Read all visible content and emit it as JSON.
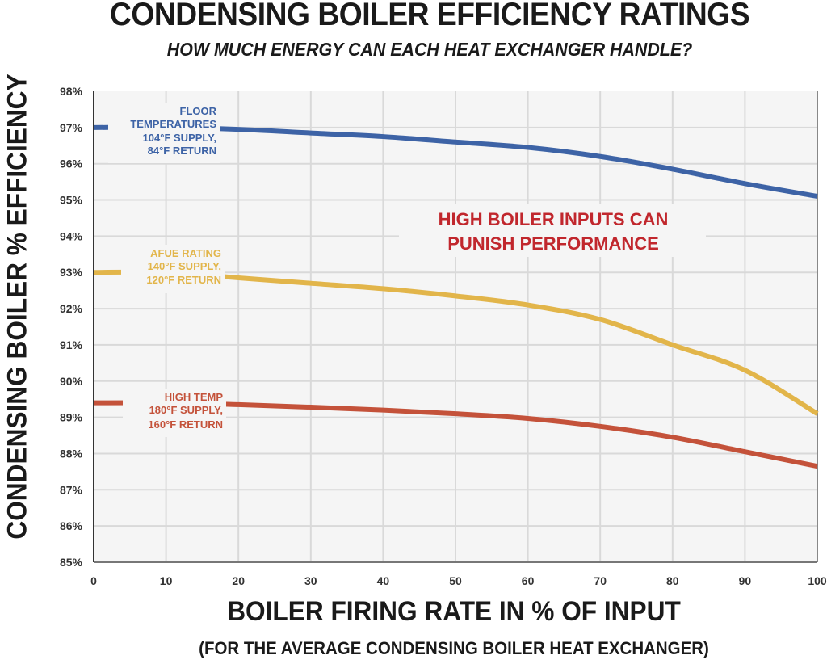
{
  "header": {
    "title": "CONDENSING BOILER EFFICIENCY RATINGS",
    "subtitle": "HOW MUCH ENERGY CAN EACH HEAT EXCHANGER HANDLE?"
  },
  "axes": {
    "ylabel": "CONDENSING BOILER % EFFICIENCY",
    "xlabel": "BOILER FIRING RATE IN % OF INPUT",
    "xsublabel": "(FOR THE AVERAGE CONDENSING BOILER HEAT EXCHANGER)",
    "yticks": [
      "98%",
      "97%",
      "96%",
      "95%",
      "94%",
      "93%",
      "92%",
      "91%",
      "90%",
      "89%",
      "88%",
      "87%",
      "86%",
      "85%"
    ],
    "xticks": [
      "0",
      "10",
      "20",
      "30",
      "40",
      "50",
      "60",
      "70",
      "80",
      "90",
      "100"
    ]
  },
  "series_labels": {
    "floor": [
      "FLOOR",
      "TEMPERATURES",
      "104°F SUPPLY,",
      "84°F RETURN"
    ],
    "afue": [
      "AFUE RATING",
      "140°F SUPPLY,",
      "120°F RETURN"
    ],
    "high": [
      "HIGH TEMP",
      "180°F SUPPLY,",
      "160°F RETURN"
    ]
  },
  "annotation": [
    "HIGH BOILER INPUTS CAN",
    "PUNISH PERFORMANCE"
  ],
  "colors": {
    "floor": "#3d63a6",
    "afue": "#e2b54a",
    "high": "#c4523a",
    "annotation": "#c1272d",
    "plot_bg": "#f5f5f5",
    "grid": "#d9d9d9"
  },
  "chart_data": {
    "type": "line",
    "title": "CONDENSING BOILER EFFICIENCY RATINGS",
    "subtitle": "HOW MUCH ENERGY CAN EACH HEAT EXCHANGER HANDLE?",
    "xlabel": "BOILER FIRING RATE IN % OF INPUT (FOR THE AVERAGE CONDENSING BOILER HEAT EXCHANGER)",
    "ylabel": "CONDENSING BOILER % EFFICIENCY",
    "x": [
      0,
      10,
      20,
      30,
      40,
      50,
      60,
      70,
      80,
      90,
      100
    ],
    "xlim": [
      0,
      100
    ],
    "ylim": [
      85,
      98
    ],
    "grid": true,
    "legend_position": "inline labels at left",
    "series": [
      {
        "name": "FLOOR TEMPERATURES 104°F SUPPLY, 84°F RETURN",
        "values": [
          97.0,
          97.0,
          96.95,
          96.85,
          96.75,
          96.6,
          96.45,
          96.2,
          95.85,
          95.45,
          95.1
        ]
      },
      {
        "name": "AFUE RATING 140°F SUPPLY, 120°F RETURN",
        "values": [
          93.0,
          93.0,
          92.85,
          92.7,
          92.55,
          92.35,
          92.1,
          91.7,
          91.0,
          90.3,
          89.1
        ]
      },
      {
        "name": "HIGH TEMP 180°F SUPPLY, 160°F RETURN",
        "values": [
          89.4,
          89.4,
          89.35,
          89.28,
          89.2,
          89.1,
          88.97,
          88.75,
          88.45,
          88.05,
          87.65
        ]
      }
    ],
    "annotations": [
      "HIGH BOILER INPUTS CAN PUNISH PERFORMANCE"
    ]
  }
}
